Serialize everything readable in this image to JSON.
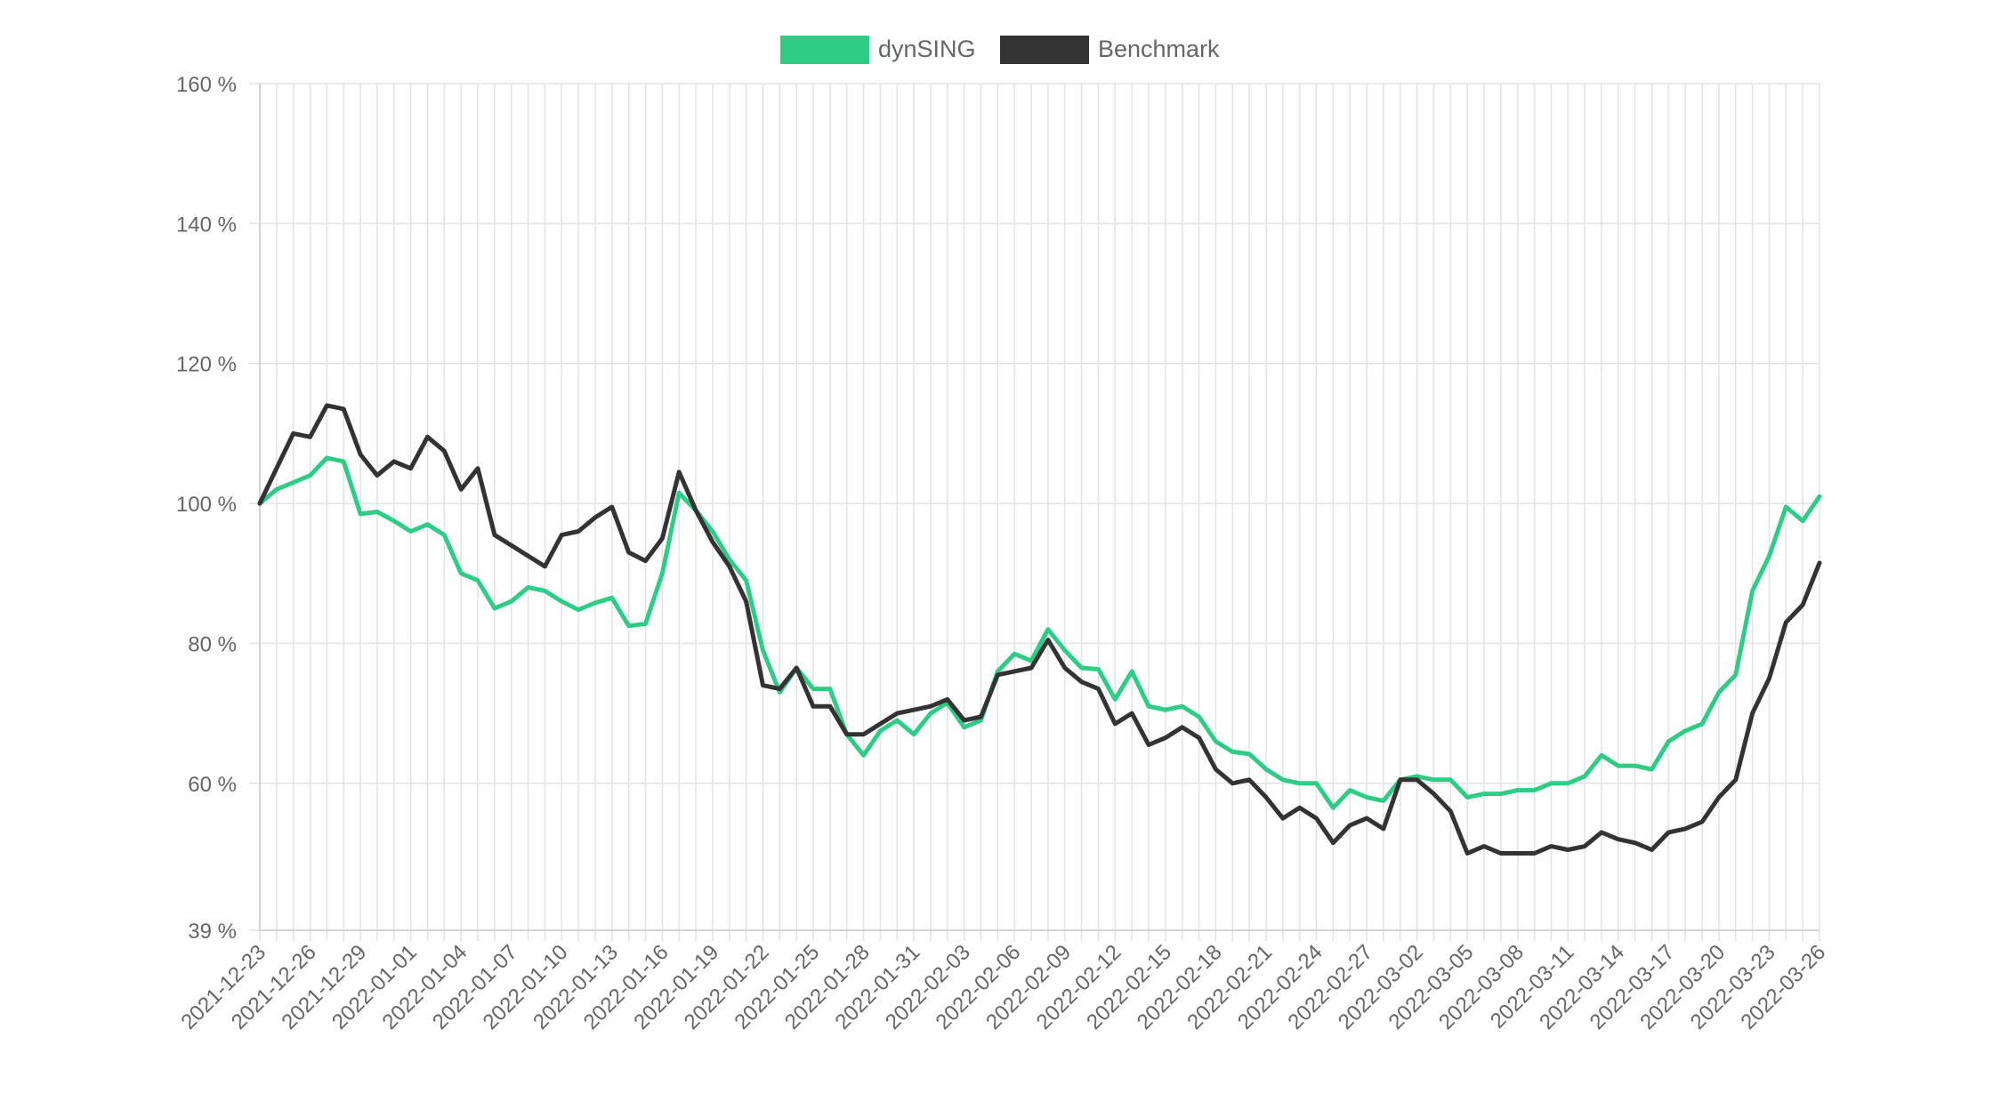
{
  "chart_data": {
    "type": "line",
    "title": "",
    "xlabel": "",
    "ylabel": "",
    "ylim": [
      39,
      160
    ],
    "y_ticks": [
      39,
      60,
      80,
      100,
      120,
      140,
      160
    ],
    "y_tick_labels": [
      "39 %",
      "60 %",
      "80 %",
      "100 %",
      "120 %",
      "140 %",
      "160 %"
    ],
    "grid": true,
    "legend_position": "top-center",
    "x": [
      "2021-12-23",
      "2021-12-24",
      "2021-12-25",
      "2021-12-26",
      "2021-12-27",
      "2021-12-28",
      "2021-12-29",
      "2021-12-30",
      "2021-12-31",
      "2022-01-01",
      "2022-01-02",
      "2022-01-03",
      "2022-01-04",
      "2022-01-05",
      "2022-01-06",
      "2022-01-07",
      "2022-01-08",
      "2022-01-09",
      "2022-01-10",
      "2022-01-11",
      "2022-01-12",
      "2022-01-13",
      "2022-01-14",
      "2022-01-15",
      "2022-01-16",
      "2022-01-17",
      "2022-01-18",
      "2022-01-19",
      "2022-01-20",
      "2022-01-21",
      "2022-01-22",
      "2022-01-23",
      "2022-01-24",
      "2022-01-25",
      "2022-01-26",
      "2022-01-27",
      "2022-01-28",
      "2022-01-29",
      "2022-01-30",
      "2022-01-31",
      "2022-02-01",
      "2022-02-02",
      "2022-02-03",
      "2022-02-04",
      "2022-02-05",
      "2022-02-06",
      "2022-02-07",
      "2022-02-08",
      "2022-02-09",
      "2022-02-10",
      "2022-02-11",
      "2022-02-12",
      "2022-02-13",
      "2022-02-14",
      "2022-02-15",
      "2022-02-16",
      "2022-02-17",
      "2022-02-18",
      "2022-02-19",
      "2022-02-20",
      "2022-02-21",
      "2022-02-22",
      "2022-02-23",
      "2022-02-24",
      "2022-02-25",
      "2022-02-26",
      "2022-02-27",
      "2022-02-28",
      "2022-03-01",
      "2022-03-02",
      "2022-03-03",
      "2022-03-04",
      "2022-03-05",
      "2022-03-06",
      "2022-03-07",
      "2022-03-08",
      "2022-03-09",
      "2022-03-10",
      "2022-03-11",
      "2022-03-12",
      "2022-03-13",
      "2022-03-14",
      "2022-03-15",
      "2022-03-16",
      "2022-03-17",
      "2022-03-18",
      "2022-03-19",
      "2022-03-20",
      "2022-03-21",
      "2022-03-22",
      "2022-03-23",
      "2022-03-24",
      "2022-03-25",
      "2022-03-26"
    ],
    "x_tick_labels": [
      "2021-12-23",
      "2021-12-26",
      "2021-12-29",
      "2022-01-01",
      "2022-01-04",
      "2022-01-07",
      "2022-01-10",
      "2022-01-13",
      "2022-01-16",
      "2022-01-19",
      "2022-01-22",
      "2022-01-25",
      "2022-01-28",
      "2022-01-31",
      "2022-02-03",
      "2022-02-06",
      "2022-02-09",
      "2022-02-12",
      "2022-02-15",
      "2022-02-18",
      "2022-02-21",
      "2022-02-24",
      "2022-02-27",
      "2022-03-02",
      "2022-03-05",
      "2022-03-08",
      "2022-03-11",
      "2022-03-14",
      "2022-03-17",
      "2022-03-20",
      "2022-03-23",
      "2022-03-26"
    ],
    "series": [
      {
        "name": "dynSING",
        "color": "#2ecc87",
        "values": [
          100.0,
          102.0,
          103.0,
          104.0,
          106.5,
          106.0,
          98.5,
          98.8,
          97.5,
          96.0,
          97.0,
          95.5,
          90.0,
          89.0,
          85.0,
          86.0,
          88.0,
          87.5,
          86.0,
          84.8,
          85.8,
          86.5,
          82.5,
          82.8,
          90.0,
          101.5,
          99.0,
          96.0,
          92.0,
          89.0,
          79.0,
          73.0,
          76.5,
          73.5,
          73.5,
          67.0,
          64.0,
          67.5,
          69.0,
          67.0,
          70.0,
          71.5,
          68.0,
          69.0,
          76.0,
          78.5,
          77.5,
          82.0,
          79.0,
          76.5,
          76.3,
          72.0,
          76.0,
          71.0,
          70.5,
          71.0,
          69.5,
          66.0,
          64.5,
          64.2,
          62.0,
          60.5,
          60.0,
          60.0,
          56.5,
          59.0,
          58.0,
          57.5,
          60.5,
          61.0,
          60.5,
          60.5,
          58.0,
          58.5,
          58.5,
          59.0,
          59.0,
          60.0,
          60.0,
          61.0,
          64.0,
          62.5,
          62.5,
          62.0,
          66.0,
          67.5,
          68.5,
          73.0,
          75.5,
          87.5,
          92.5,
          99.5,
          97.5,
          101.0
        ]
      },
      {
        "name": "Benchmark",
        "color": "#333333",
        "values": [
          100.0,
          105.0,
          110.0,
          109.5,
          114.0,
          113.5,
          107.0,
          104.0,
          106.0,
          105.0,
          109.5,
          107.5,
          102.0,
          105.0,
          95.5,
          94.0,
          92.5,
          91.0,
          95.5,
          96.0,
          98.0,
          99.5,
          93.0,
          91.8,
          95.0,
          104.5,
          99.0,
          94.5,
          91.0,
          86.0,
          74.0,
          73.5,
          76.5,
          71.0,
          71.0,
          67.0,
          67.0,
          68.5,
          70.0,
          70.5,
          71.0,
          72.0,
          69.0,
          69.5,
          75.5,
          76.0,
          76.5,
          80.5,
          76.5,
          74.5,
          73.5,
          68.5,
          70.0,
          65.5,
          66.5,
          68.0,
          66.5,
          62.0,
          60.0,
          60.5,
          58.0,
          55.0,
          56.5,
          55.0,
          51.5,
          54.0,
          55.0,
          53.5,
          60.5,
          60.5,
          58.5,
          56.0,
          50.0,
          51.0,
          50.0,
          50.0,
          50.0,
          51.0,
          50.5,
          51.0,
          53.0,
          52.0,
          51.5,
          50.5,
          53.0,
          53.5,
          54.5,
          58.0,
          60.5,
          70.0,
          75.0,
          83.0,
          85.5,
          91.5
        ]
      }
    ]
  }
}
